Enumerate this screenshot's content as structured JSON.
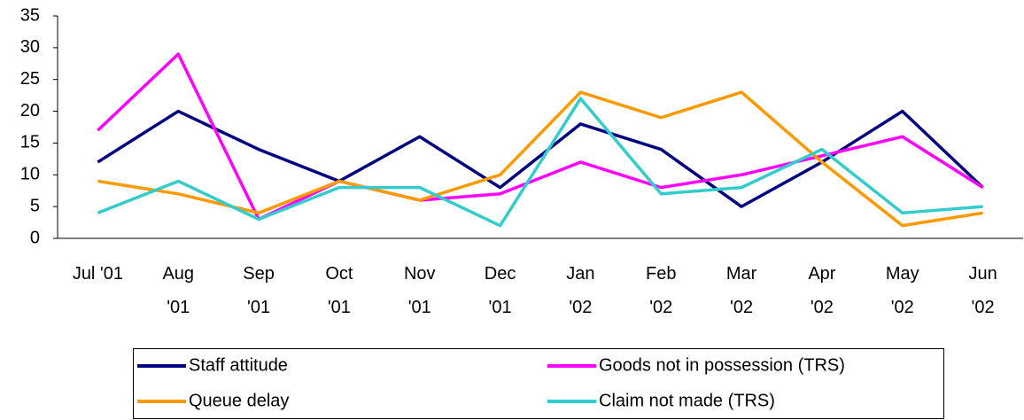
{
  "chart_data": {
    "type": "line",
    "categories": [
      "Jul '01",
      "Aug '01",
      "Sep '01",
      "Oct '01",
      "Nov '01",
      "Dec '01",
      "Jan '02",
      "Feb '02",
      "Mar '02",
      "Apr '02",
      "May '02",
      "Jun '02"
    ],
    "series": [
      {
        "name": "Staff attitude",
        "color": "#000080",
        "values": [
          12,
          20,
          14,
          9,
          16,
          8,
          18,
          14,
          5,
          12,
          20,
          8
        ]
      },
      {
        "name": "Goods not in possession (TRS)",
        "color": "#ff00ff",
        "values": [
          17,
          29,
          3,
          9,
          6,
          7,
          12,
          8,
          10,
          13,
          16,
          8
        ]
      },
      {
        "name": "Queue delay",
        "color": "#ff9900",
        "values": [
          9,
          7,
          4,
          9,
          6,
          10,
          23,
          19,
          23,
          12,
          2,
          4
        ]
      },
      {
        "name": "Claim not made (TRS)",
        "color": "#33cccc",
        "values": [
          4,
          9,
          3,
          8,
          8,
          2,
          22,
          7,
          8,
          14,
          4,
          5
        ]
      }
    ],
    "ylim": [
      0,
      35
    ],
    "yticks": [
      0,
      5,
      10,
      15,
      20,
      25,
      30,
      35
    ],
    "grid": false,
    "legend": "bottom"
  }
}
